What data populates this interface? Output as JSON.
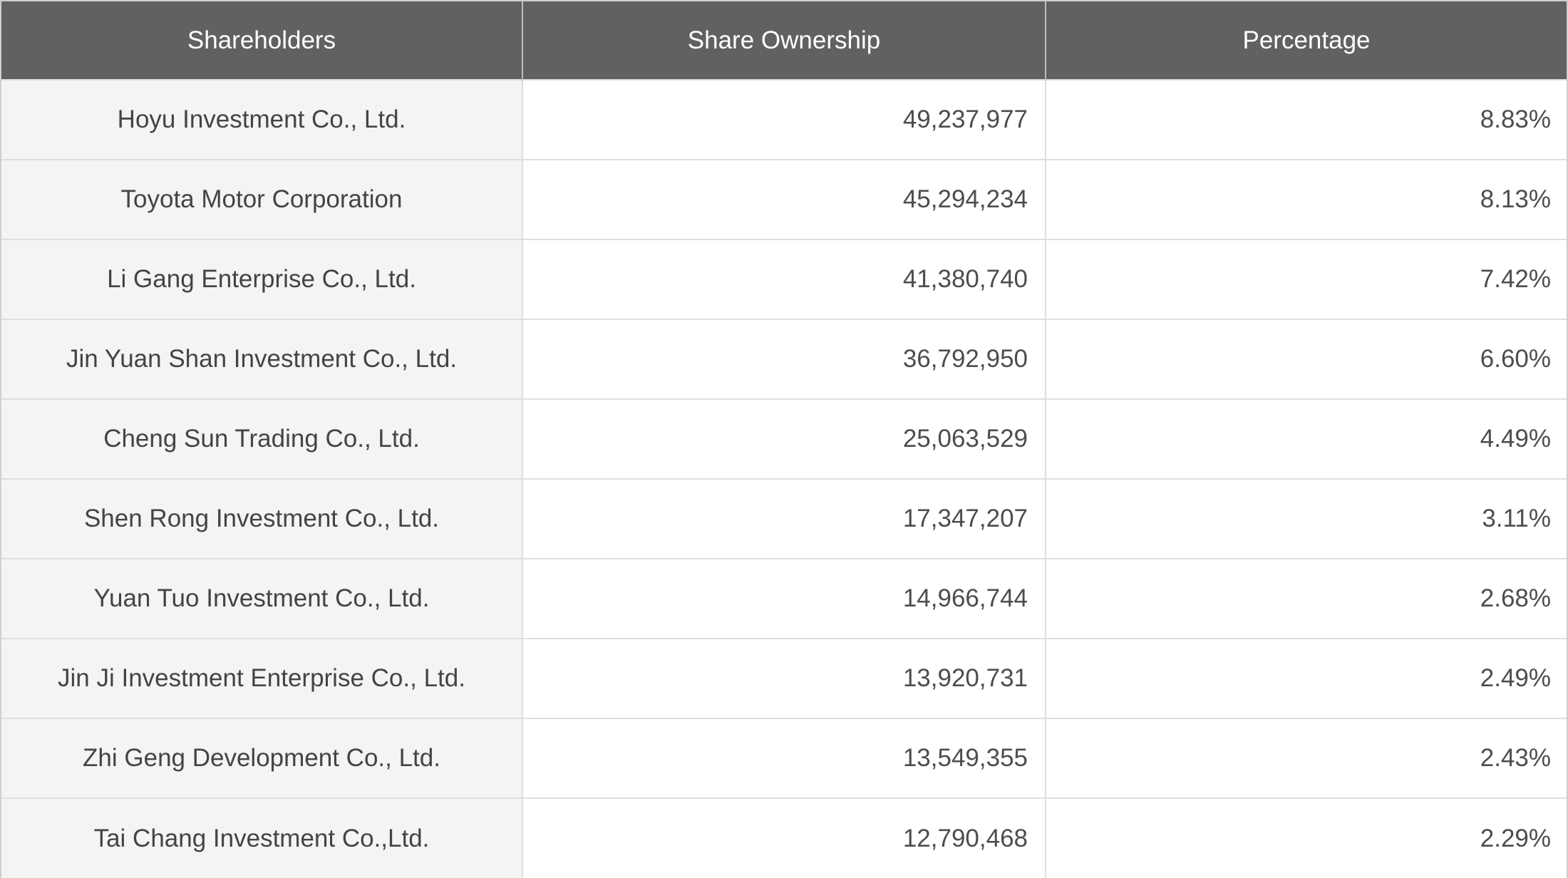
{
  "table": {
    "headers": [
      "Shareholders",
      "Share Ownership",
      "Percentage"
    ],
    "rows": [
      {
        "shareholder": "Hoyu Investment Co., Ltd.",
        "shares": "49,237,977",
        "percentage": "8.83%"
      },
      {
        "shareholder": "Toyota Motor Corporation",
        "shares": "45,294,234",
        "percentage": "8.13%"
      },
      {
        "shareholder": "Li Gang Enterprise Co., Ltd.",
        "shares": "41,380,740",
        "percentage": "7.42%"
      },
      {
        "shareholder": "Jin Yuan Shan Investment Co., Ltd.",
        "shares": "36,792,950",
        "percentage": "6.60%"
      },
      {
        "shareholder": "Cheng Sun Trading Co., Ltd.",
        "shares": "25,063,529",
        "percentage": "4.49%"
      },
      {
        "shareholder": "Shen Rong Investment Co., Ltd.",
        "shares": "17,347,207",
        "percentage": "3.11%"
      },
      {
        "shareholder": "Yuan Tuo Investment Co., Ltd.",
        "shares": "14,966,744",
        "percentage": "2.68%"
      },
      {
        "shareholder": "Jin Ji Investment Enterprise Co., Ltd.",
        "shares": "13,920,731",
        "percentage": "2.49%"
      },
      {
        "shareholder": "Zhi Geng Development Co., Ltd.",
        "shares": "13,549,355",
        "percentage": "2.43%"
      },
      {
        "shareholder": "Tai Chang Investment Co.,Ltd.",
        "shares": "12,790,468",
        "percentage": "2.29%"
      }
    ]
  },
  "colors": {
    "header_bg": "#616161",
    "header_text": "#ffffff",
    "name_col_bg": "#f4f4f4",
    "cell_bg": "#ffffff",
    "body_text": "#4d4d4d",
    "grid": "#dedede"
  }
}
